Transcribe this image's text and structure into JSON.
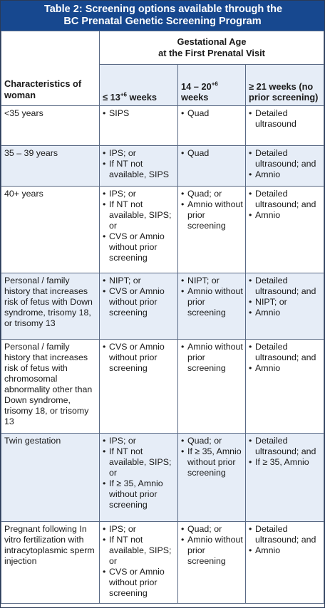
{
  "title": {
    "line1": "Table 2: Screening options available through the",
    "line2": "BC Prenatal Genetic Screening Program"
  },
  "header": {
    "group_line1": "Gestational Age",
    "group_line2": "at the First Prenatal Visit",
    "characteristics": "Characteristics of woman",
    "col1": "≤ 13",
    "col1_sup": "+6",
    "col1_tail": " weeks",
    "col2": "14 – 20",
    "col2_sup": "+6",
    "col2_tail": "weeks",
    "col3": "≥ 21 weeks (no prior screening)"
  },
  "rows": [
    {
      "label": "<35 years",
      "c1": [
        "SIPS"
      ],
      "c2": [
        "Quad"
      ],
      "c3": [
        "Detailed ultrasound"
      ]
    },
    {
      "label": "35 – 39 years",
      "c1": [
        "IPS; or",
        "If NT not available, SIPS"
      ],
      "c2": [
        "Quad"
      ],
      "c3": [
        "Detailed ultrasound; and",
        "Amnio"
      ]
    },
    {
      "label": "40+ years",
      "c1": [
        "IPS; or",
        "If NT not available, SIPS; or",
        "CVS or Amnio without prior screening"
      ],
      "c2": [
        "Quad; or",
        "Amnio without prior screening"
      ],
      "c3": [
        "Detailed ultrasound; and",
        "Amnio"
      ]
    },
    {
      "label": "Personal / family history that increases risk of fetus with Down syndrome, trisomy 18, or trisomy 13",
      "c1": [
        "NIPT; or",
        "CVS or Amnio without prior screening"
      ],
      "c2": [
        "NIPT; or",
        "Amnio without prior screening"
      ],
      "c3": [
        "Detailed ultrasound; and",
        "NIPT; or",
        "Amnio"
      ]
    },
    {
      "label": "Personal / family history that increases risk of fetus with chromosomal abnormality other than Down syndrome, trisomy 18, or trisomy 13",
      "c1": [
        "CVS or Amnio without prior screening"
      ],
      "c2": [
        "Amnio without prior screening"
      ],
      "c3": [
        "Detailed ultrasound; and",
        "Amnio"
      ]
    },
    {
      "label": "Twin gestation",
      "c1": [
        "IPS; or",
        "If NT not available, SIPS; or",
        "If ≥ 35, Amnio without prior screening"
      ],
      "c2": [
        "Quad; or",
        "If ≥ 35, Amnio without prior screening"
      ],
      "c3": [
        "Detailed ultrasound; and",
        "If ≥ 35, Amnio"
      ]
    },
    {
      "label": "Pregnant following In vitro fertilization with intracytoplasmic sperm injection",
      "c1": [
        "IPS; or",
        "If NT not available, SIPS; or",
        "CVS or Amnio without prior screening"
      ],
      "c2": [
        "Quad; or",
        "Amnio without prior screening"
      ],
      "c3": [
        "Detailed ultrasound; and",
        "Amnio"
      ]
    }
  ]
}
